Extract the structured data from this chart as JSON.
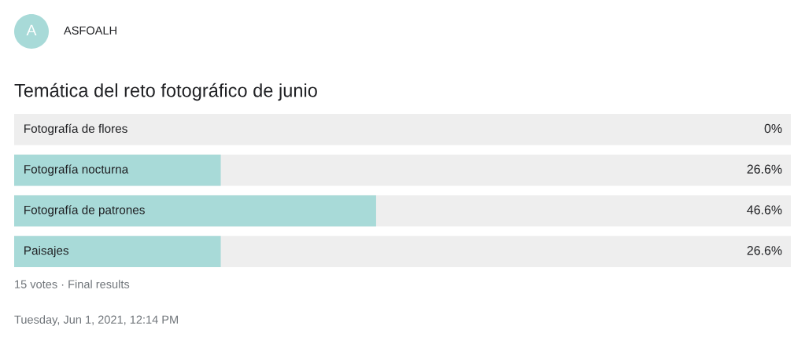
{
  "chart_data": {
    "type": "bar",
    "orientation": "horizontal",
    "title": "Temática del reto fotográfico de junio",
    "categories": [
      "Fotografía de flores",
      "Fotografía nocturna",
      "Fotografía de patrones",
      "Paisajes"
    ],
    "values": [
      0,
      26.6,
      46.6,
      26.6
    ],
    "value_labels": [
      "0%",
      "26.6%",
      "46.6%",
      "26.6%"
    ],
    "color": "#a8dad8",
    "xlim": [
      0,
      100
    ],
    "annotations": [
      "A",
      "ASFOALH",
      "15 votes · Final results",
      "Tuesday, Jun 1, 2021, 12:14 PM"
    ]
  }
}
